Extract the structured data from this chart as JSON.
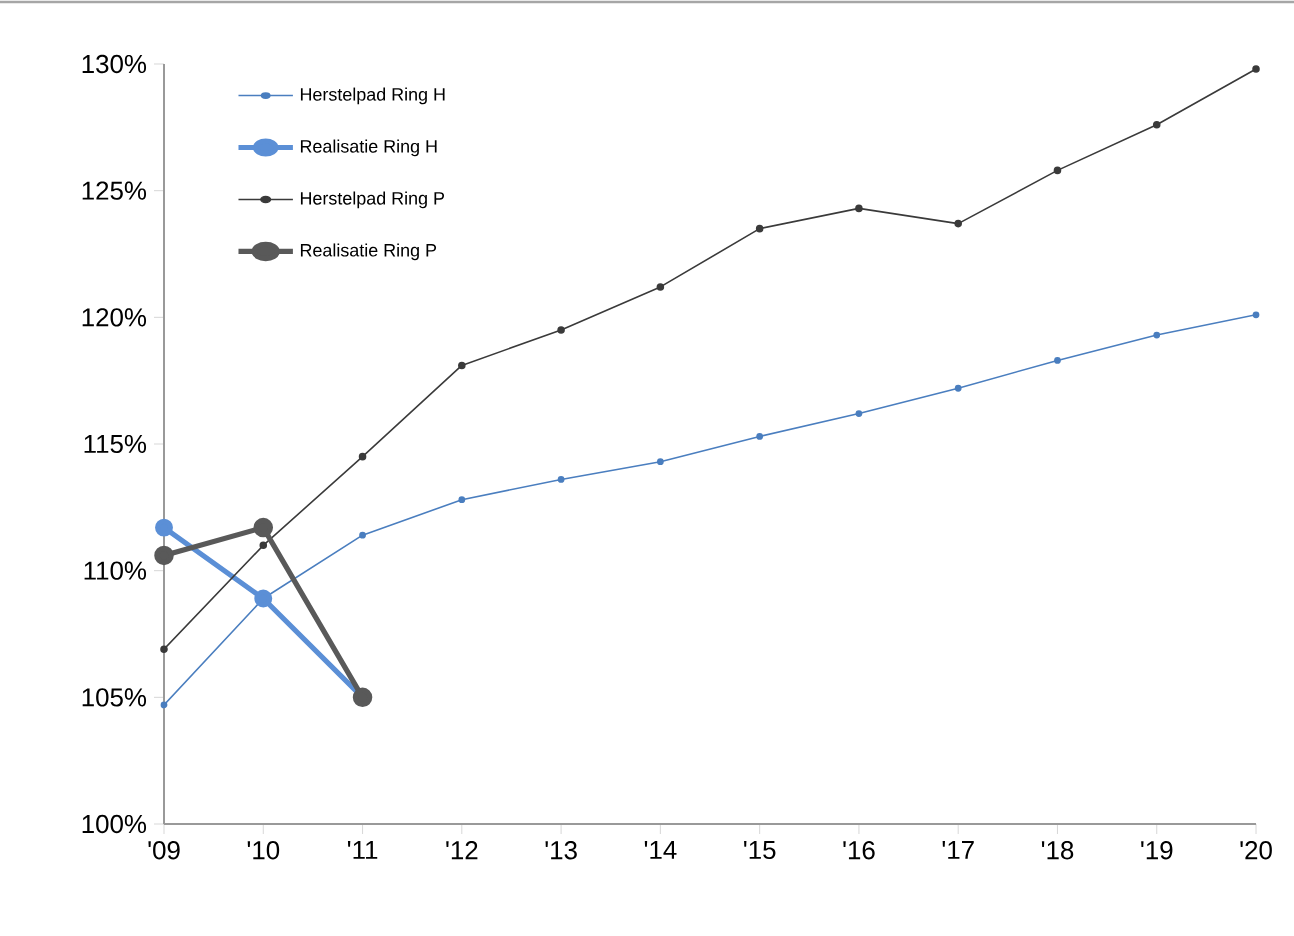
{
  "chart_data": {
    "type": "line",
    "categories": [
      "'09",
      "'10",
      "'11",
      "'12",
      "'13",
      "'14",
      "'15",
      "'16",
      "'17",
      "'18",
      "'19",
      "'20"
    ],
    "series": [
      {
        "name": "Herstelpad Ring H",
        "color": "#4a7ebf",
        "values": [
          104.7,
          108.9,
          111.4,
          112.8,
          113.6,
          114.3,
          115.3,
          116.2,
          117.2,
          118.3,
          119.3,
          120.1
        ]
      },
      {
        "name": "Realisatie Ring H",
        "color": "#5b8fd6",
        "values": [
          111.7,
          108.9,
          105.0,
          null,
          null,
          null,
          null,
          null,
          null,
          null,
          null,
          null
        ]
      },
      {
        "name": "Herstelpad Ring P",
        "color": "#3a3a3a",
        "values": [
          106.9,
          111.0,
          114.5,
          118.1,
          119.5,
          121.2,
          123.5,
          124.3,
          123.7,
          125.8,
          127.6,
          129.8
        ]
      },
      {
        "name": "Realisatie Ring P",
        "color": "#595959",
        "values": [
          110.6,
          111.7,
          105.0,
          null,
          null,
          null,
          null,
          null,
          null,
          null,
          null,
          null
        ]
      }
    ],
    "ylim": [
      100,
      130
    ],
    "yticks": [
      {
        "value": 100,
        "label": "100%"
      },
      {
        "value": 105,
        "label": "105%"
      },
      {
        "value": 110,
        "label": "110%"
      },
      {
        "value": 115,
        "label": "115%"
      },
      {
        "value": 120,
        "label": "120%"
      },
      {
        "value": 125,
        "label": "125%"
      },
      {
        "value": 130,
        "label": "130%"
      }
    ],
    "legend": "top left",
    "marker": "circle",
    "grid": false
  }
}
